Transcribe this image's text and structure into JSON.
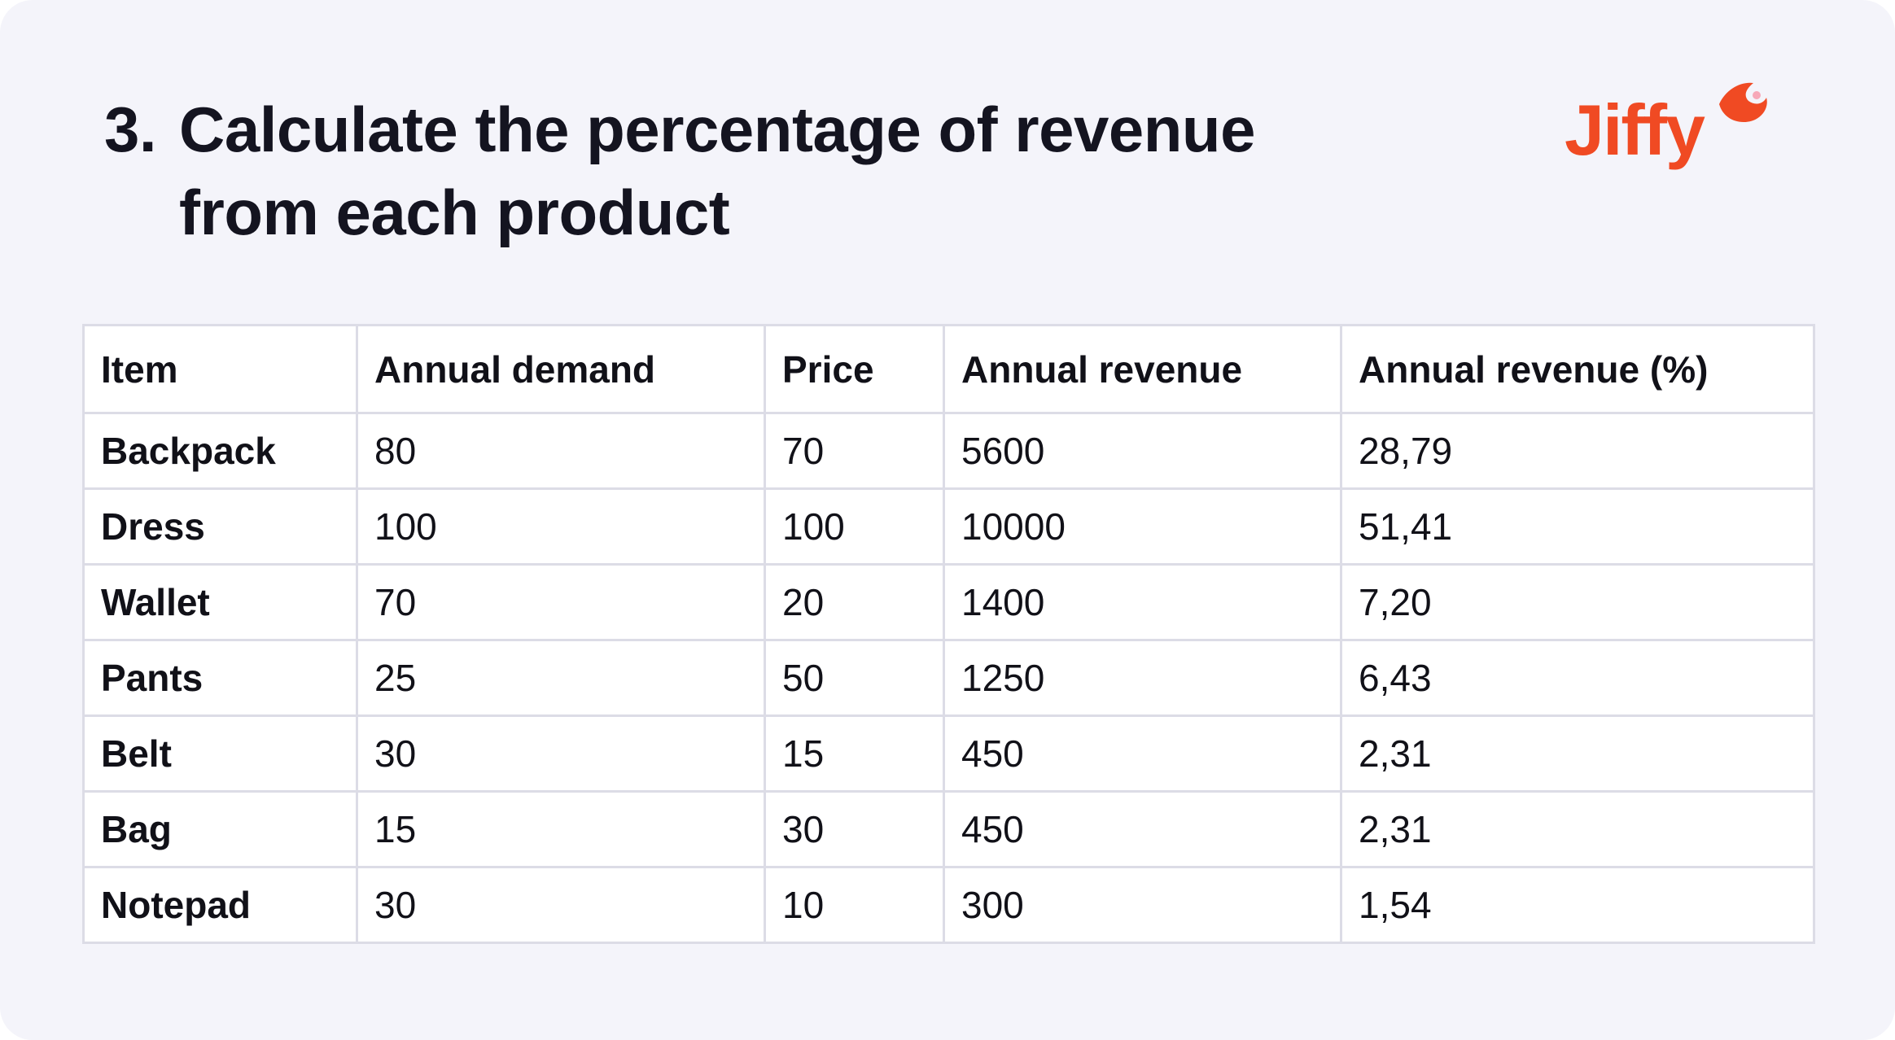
{
  "heading": {
    "number": "3.",
    "text": "Calculate the percentage of revenue from each product"
  },
  "logo": {
    "text": "Jiffy",
    "color": "#f04a23",
    "accent_color": "#f7a8b8"
  },
  "table": {
    "headers": [
      "Item",
      "Annual demand",
      "Price",
      "Annual revenue",
      "Annual revenue (%)"
    ],
    "rows": [
      [
        "Backpack",
        "80",
        "70",
        "5600",
        "28,79"
      ],
      [
        "Dress",
        "100",
        "100",
        "10000",
        "51,41"
      ],
      [
        "Wallet",
        "70",
        "20",
        "1400",
        "7,20"
      ],
      [
        "Pants",
        "25",
        "50",
        "1250",
        "6,43"
      ],
      [
        "Belt",
        "30",
        "15",
        "450",
        "2,31"
      ],
      [
        "Bag",
        "15",
        "30",
        "450",
        "2,31"
      ],
      [
        "Notepad",
        "30",
        "10",
        "300",
        "1,54"
      ]
    ]
  }
}
